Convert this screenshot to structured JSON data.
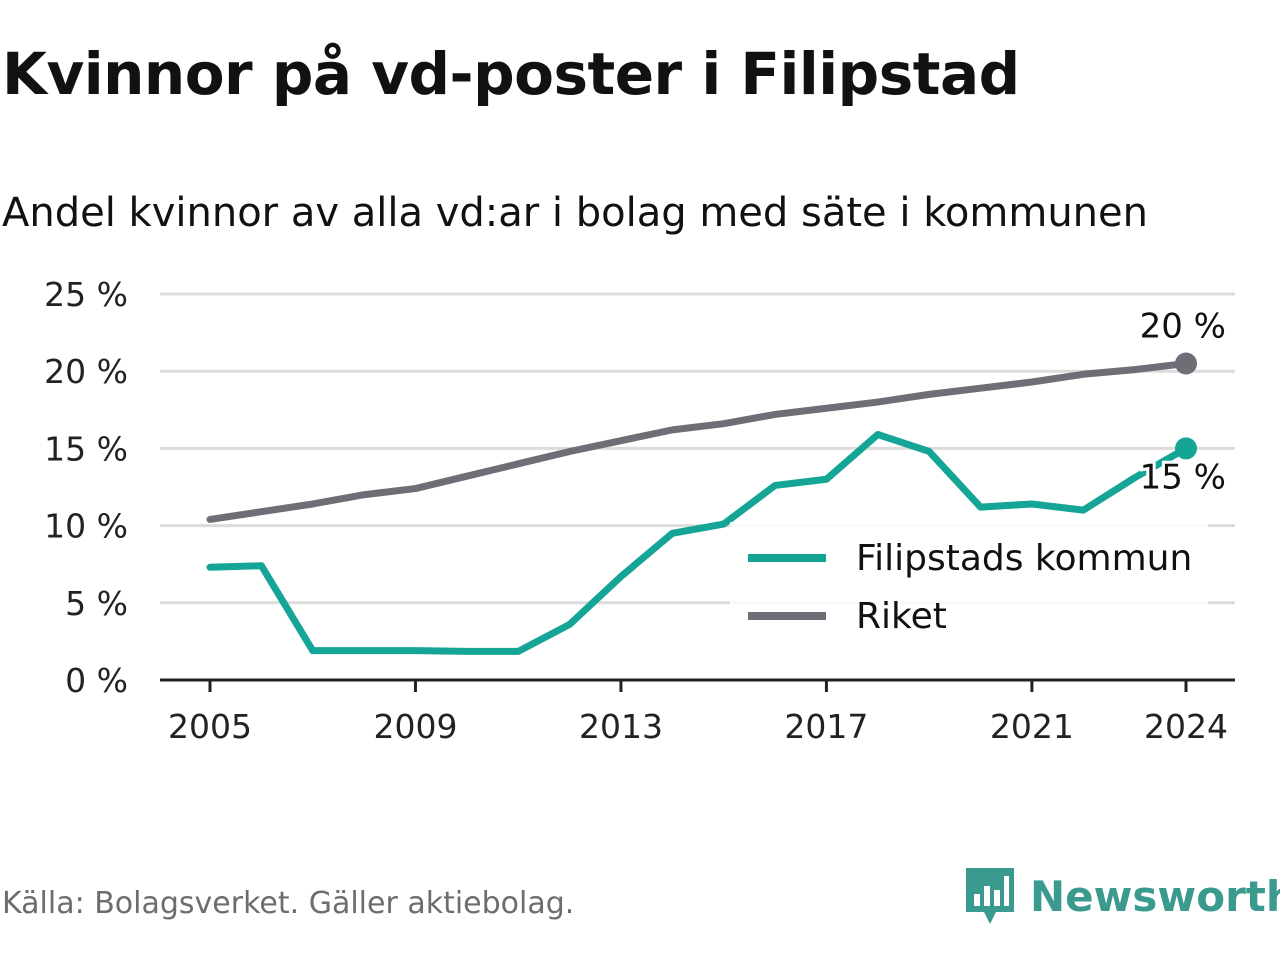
{
  "title": "Kvinnor på vd-poster i Filipstad",
  "subtitle": "Andel kvinnor av alla vd:ar i bolag med säte i kommunen",
  "source": "Källa: Bolagsverket. Gäller aktiebolag.",
  "brand": {
    "name": "Newsworthy",
    "icon": "newsworthy-logo-icon",
    "color": "#3a9a8e"
  },
  "colors": {
    "filipstad": "#14a596",
    "riket": "#6e6e76",
    "grid": "#dcdcdc",
    "axis": "#222222"
  },
  "chart_data": {
    "type": "line",
    "x": [
      2005,
      2006,
      2007,
      2008,
      2009,
      2010,
      2011,
      2012,
      2013,
      2014,
      2015,
      2016,
      2017,
      2018,
      2019,
      2020,
      2021,
      2022,
      2023,
      2024
    ],
    "series": [
      {
        "name": "Filipstads kommun",
        "color": "#14a596",
        "values": [
          7.3,
          7.4,
          1.9,
          1.9,
          1.9,
          1.85,
          1.85,
          3.6,
          6.7,
          9.5,
          10.1,
          12.6,
          13.0,
          15.9,
          14.8,
          11.2,
          11.4,
          11.0,
          13.1,
          15.0
        ],
        "end_label": "15 %"
      },
      {
        "name": "Riket",
        "color": "#6e6e76",
        "values": [
          10.4,
          10.9,
          11.4,
          12.0,
          12.4,
          13.2,
          14.0,
          14.8,
          15.5,
          16.2,
          16.6,
          17.2,
          17.6,
          18.0,
          18.5,
          18.9,
          19.3,
          19.8,
          20.1,
          20.5
        ],
        "end_label": "20 %"
      }
    ],
    "x_ticks": [
      2005,
      2009,
      2013,
      2017,
      2021,
      2024
    ],
    "x_tick_labels": [
      "2005",
      "2009",
      "2013",
      "2017",
      "2021",
      "2024"
    ],
    "y_ticks": [
      0,
      5,
      10,
      15,
      20,
      25
    ],
    "y_tick_labels": [
      "0 %",
      "5 %",
      "10 %",
      "15 %",
      "20 %",
      "25 %"
    ],
    "ylim": [
      0,
      25
    ],
    "xlim": [
      2004,
      2025
    ],
    "grid": true,
    "legend": [
      "Filipstads kommun",
      "Riket"
    ],
    "legend_position": "bottom-right"
  }
}
